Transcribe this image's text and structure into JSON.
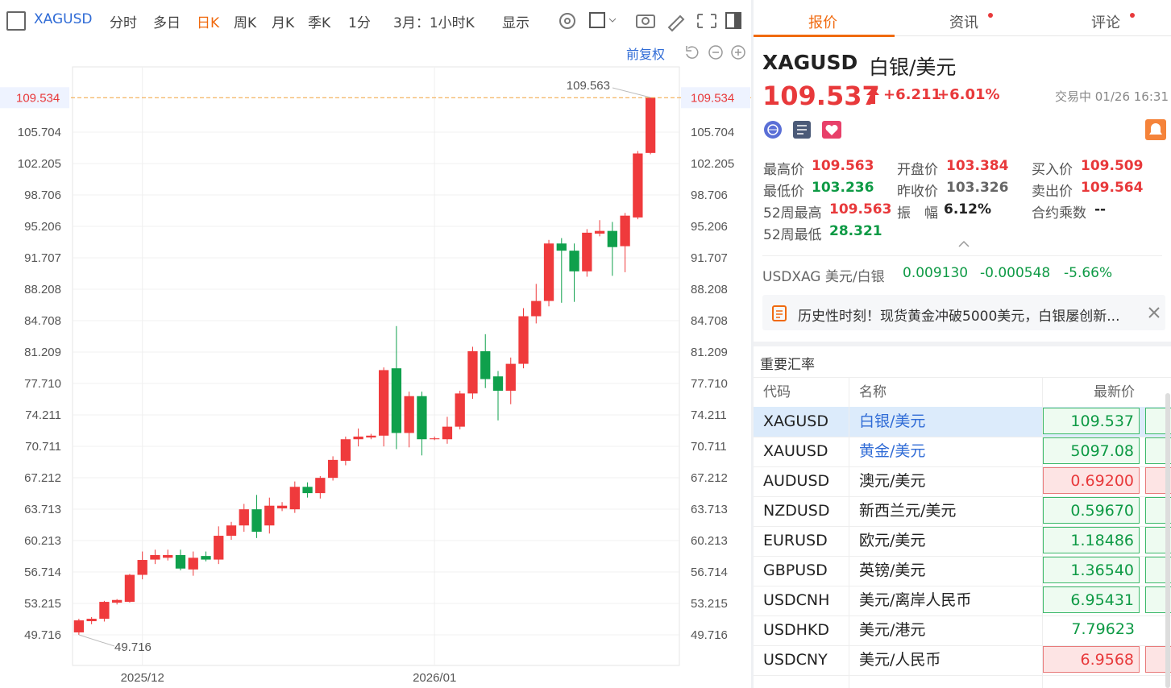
{
  "toolbar": {
    "symbol": "XAGUSD",
    "periods": [
      "分时",
      "多日",
      "日K",
      "周K",
      "月K",
      "季K"
    ],
    "interval": "1分",
    "range": "3月：1小时K",
    "display": "显示",
    "adjust": "前复权"
  },
  "tabs": [
    "报价",
    "资讯",
    "评论"
  ],
  "quote": {
    "symbol": "XAGUSD",
    "name": "白银/美元",
    "price": "109.537",
    "change": "+6.211",
    "change_pct": "+6.01%",
    "status": "交易中 01/26 16:31",
    "stats": [
      {
        "label": "最高价",
        "value": "109.563"
      },
      {
        "label": "开盘价",
        "value": "103.384"
      },
      {
        "label": "买入价",
        "value": "109.509"
      },
      {
        "label": "最低价",
        "value": "103.236"
      },
      {
        "label": "昨收价",
        "value": "103.326"
      },
      {
        "label": "卖出价",
        "value": "109.564"
      },
      {
        "label": "52周最高",
        "value": "109.563"
      },
      {
        "label": "振　幅",
        "value": "6.12%"
      },
      {
        "label": "合约乘数",
        "value": "--"
      },
      {
        "label": "52周最低",
        "value": "28.321"
      }
    ],
    "inverse": {
      "symbol": "USDXAG 美元/白银",
      "price": "0.009130",
      "change": "-0.000548",
      "change_pct": "-5.66%"
    },
    "news": "历史性时刻！现货黄金冲破5000美元，白银屡创新..."
  },
  "rates": {
    "title": "重要汇率",
    "columns": [
      "代码",
      "名称",
      "最新价"
    ],
    "rows": [
      {
        "code": "XAGUSD",
        "name": "白银/美元",
        "price": "109.537"
      },
      {
        "code": "XAUUSD",
        "name": "黄金/美元",
        "price": "5097.08"
      },
      {
        "code": "AUDUSD",
        "name": "澳元/美元",
        "price": "0.69200"
      },
      {
        "code": "NZDUSD",
        "name": "新西兰元/美元",
        "price": "0.59670"
      },
      {
        "code": "EURUSD",
        "name": "欧元/美元",
        "price": "1.18486"
      },
      {
        "code": "GBPUSD",
        "name": "英镑/美元",
        "price": "1.36540"
      },
      {
        "code": "USDCNH",
        "name": "美元/离岸人民币",
        "price": "6.95431"
      },
      {
        "code": "USDHKD",
        "name": "美元/港元",
        "price": "7.79623"
      },
      {
        "code": "USDCNY",
        "name": "美元/人民币",
        "price": "6.9568"
      }
    ]
  },
  "chart_data": {
    "type": "candlestick",
    "categories": [
      null,
      null,
      null,
      null,
      null,
      "2025/12",
      null,
      null,
      null,
      null,
      null,
      null,
      null,
      null,
      null,
      null,
      null,
      null,
      null,
      null,
      null,
      null,
      null,
      null,
      null,
      null,
      null,
      null,
      "2026/01",
      null,
      null,
      null,
      null,
      null,
      null,
      null,
      null,
      null,
      null,
      null,
      null,
      null,
      null,
      null,
      null,
      null
    ],
    "open": [
      49.99,
      51.24,
      51.51,
      53.3,
      53.4,
      56.4,
      58.1,
      58.3,
      58.6,
      57.0,
      58.5,
      58.1,
      60.75,
      61.9,
      63.7,
      61.9,
      63.8,
      63.7,
      66.2,
      65.5,
      67.2,
      69.1,
      71.5,
      71.7,
      71.9,
      79.4,
      72.2,
      76.3,
      71.5,
      71.5,
      72.9,
      76.6,
      81.3,
      78.5,
      76.9,
      79.9,
      85.2,
      86.9,
      93.3,
      92.5,
      90.2,
      94.4,
      94.7,
      93.0,
      96.2,
      103.384
    ],
    "high": [
      51.51,
      51.7,
      53.5,
      53.7,
      56.5,
      59.0,
      59.2,
      59.2,
      59.2,
      59.0,
      59.0,
      61.8,
      62.3,
      64.3,
      65.3,
      65.0,
      64.5,
      66.8,
      66.7,
      67.4,
      69.6,
      71.8,
      72.7,
      72.1,
      79.5,
      84.1,
      76.8,
      76.8,
      71.8,
      74.0,
      76.9,
      81.8,
      83.2,
      79.1,
      80.6,
      86.1,
      88.8,
      93.7,
      93.9,
      93.3,
      94.9,
      95.9,
      95.7,
      96.7,
      103.6,
      109.563
    ],
    "low": [
      49.716,
      50.9,
      51.2,
      53.1,
      53.3,
      55.9,
      57.6,
      58.0,
      56.9,
      56.3,
      57.9,
      57.6,
      60.3,
      61.2,
      60.5,
      61.0,
      63.5,
      63.3,
      65.0,
      64.9,
      66.9,
      68.6,
      70.7,
      71.5,
      70.7,
      70.4,
      70.6,
      69.7,
      71.4,
      71.0,
      72.6,
      76.0,
      77.2,
      73.6,
      75.4,
      79.4,
      84.4,
      86.3,
      86.7,
      86.8,
      89.6,
      94.1,
      89.7,
      90.1,
      96.0,
      103.236
    ],
    "close": [
      51.33,
      51.51,
      53.39,
      53.6,
      56.4,
      58.06,
      58.6,
      58.6,
      57.1,
      58.3,
      58.1,
      60.75,
      61.9,
      63.7,
      61.2,
      64.1,
      64.1,
      66.2,
      65.5,
      67.2,
      69.2,
      71.5,
      71.8,
      71.9,
      79.2,
      72.2,
      76.3,
      71.5,
      71.6,
      72.9,
      76.6,
      81.3,
      78.2,
      76.9,
      79.9,
      85.2,
      86.9,
      93.3,
      92.5,
      90.2,
      94.5,
      94.7,
      92.9,
      96.4,
      103.326,
      109.537
    ],
    "up_color": "#ef3a3c",
    "down_color": "#0fa04c",
    "ylim": [
      46.31,
      112.97
    ],
    "yticks": [
      49.716,
      53.215,
      56.714,
      60.213,
      63.713,
      67.212,
      70.711,
      74.211,
      {
        "value": 77.71,
        "label": "77.710"
      },
      81.209,
      84.708,
      88.208,
      91.707,
      95.206,
      98.706,
      102.205,
      105.704
    ],
    "price_line": 109.534,
    "max_label": 109.563,
    "min_label": 49.716,
    "grid": true
  }
}
